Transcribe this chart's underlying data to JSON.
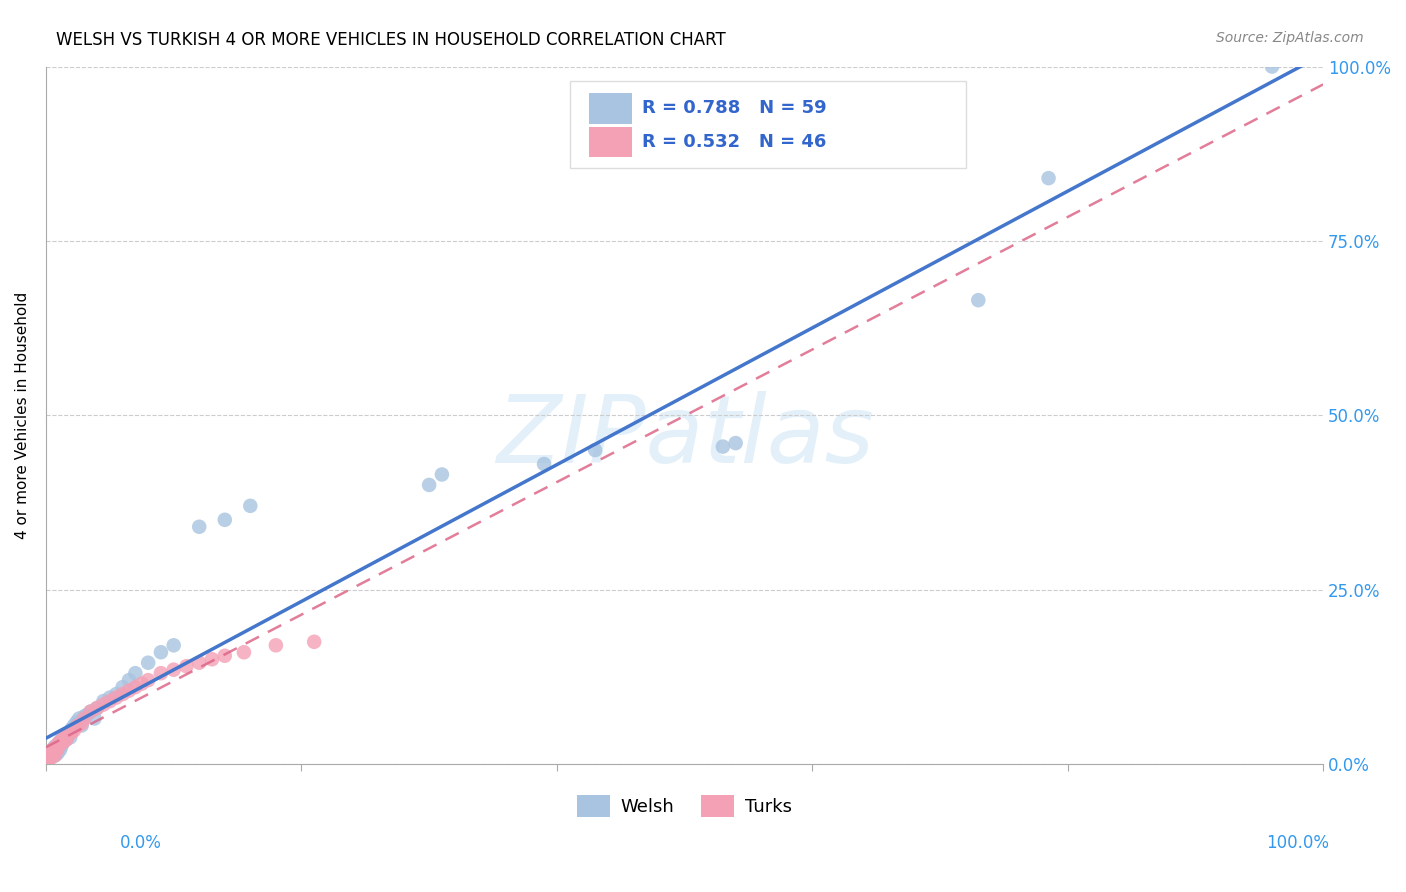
{
  "title": "WELSH VS TURKISH 4 OR MORE VEHICLES IN HOUSEHOLD CORRELATION CHART",
  "source": "Source: ZipAtlas.com",
  "ylabel": "4 or more Vehicles in Household",
  "welsh_color": "#a8c4e0",
  "turks_color": "#f4a0b5",
  "welsh_line_color": "#4477cc",
  "turks_line_color": "#dd6688",
  "watermark_text": "ZIPatlas",
  "legend_welsh_text": "R = 0.788   N = 59",
  "legend_turks_text": "R = 0.532   N = 46",
  "welsh_x": [
    0.002,
    0.003,
    0.003,
    0.004,
    0.004,
    0.005,
    0.005,
    0.006,
    0.006,
    0.007,
    0.007,
    0.008,
    0.008,
    0.009,
    0.009,
    0.01,
    0.01,
    0.011,
    0.011,
    0.012,
    0.012,
    0.013,
    0.014,
    0.015,
    0.016,
    0.017,
    0.018,
    0.019,
    0.02,
    0.022,
    0.024,
    0.026,
    0.028,
    0.03,
    0.032,
    0.035,
    0.038,
    0.04,
    0.045,
    0.05,
    0.055,
    0.06,
    0.065,
    0.07,
    0.08,
    0.09,
    0.1,
    0.12,
    0.14,
    0.16,
    0.3,
    0.31,
    0.39,
    0.43,
    0.53,
    0.54,
    0.73,
    0.785,
    0.96
  ],
  "welsh_y": [
    0.01,
    0.008,
    0.015,
    0.012,
    0.018,
    0.01,
    0.02,
    0.015,
    0.022,
    0.012,
    0.025,
    0.018,
    0.022,
    0.015,
    0.02,
    0.025,
    0.03,
    0.02,
    0.028,
    0.025,
    0.035,
    0.03,
    0.038,
    0.04,
    0.035,
    0.042,
    0.045,
    0.038,
    0.05,
    0.055,
    0.06,
    0.065,
    0.055,
    0.068,
    0.07,
    0.075,
    0.065,
    0.08,
    0.09,
    0.095,
    0.1,
    0.11,
    0.12,
    0.13,
    0.145,
    0.16,
    0.17,
    0.34,
    0.35,
    0.37,
    0.4,
    0.415,
    0.43,
    0.45,
    0.455,
    0.46,
    0.665,
    0.84,
    1.0
  ],
  "turks_x": [
    0.002,
    0.003,
    0.003,
    0.004,
    0.005,
    0.005,
    0.006,
    0.007,
    0.007,
    0.008,
    0.008,
    0.009,
    0.01,
    0.01,
    0.011,
    0.012,
    0.013,
    0.014,
    0.015,
    0.016,
    0.017,
    0.018,
    0.02,
    0.022,
    0.025,
    0.028,
    0.03,
    0.035,
    0.04,
    0.045,
    0.05,
    0.055,
    0.06,
    0.065,
    0.07,
    0.075,
    0.08,
    0.09,
    0.1,
    0.11,
    0.12,
    0.13,
    0.14,
    0.155,
    0.18,
    0.21
  ],
  "turks_y": [
    0.005,
    0.008,
    0.012,
    0.01,
    0.015,
    0.02,
    0.018,
    0.012,
    0.022,
    0.018,
    0.025,
    0.022,
    0.025,
    0.03,
    0.028,
    0.03,
    0.035,
    0.032,
    0.038,
    0.035,
    0.04,
    0.042,
    0.045,
    0.048,
    0.055,
    0.058,
    0.065,
    0.075,
    0.08,
    0.085,
    0.09,
    0.095,
    0.1,
    0.105,
    0.11,
    0.115,
    0.12,
    0.13,
    0.135,
    0.14,
    0.145,
    0.15,
    0.155,
    0.16,
    0.17,
    0.175
  ],
  "xtick_positions": [
    0.0,
    0.2,
    0.4,
    0.6,
    0.8,
    1.0
  ],
  "ytick_positions": [
    0.0,
    0.25,
    0.5,
    0.75,
    1.0
  ],
  "ytick_labels": [
    "0.0%",
    "25.0%",
    "50.0%",
    "75.0%",
    "100.0%"
  ]
}
